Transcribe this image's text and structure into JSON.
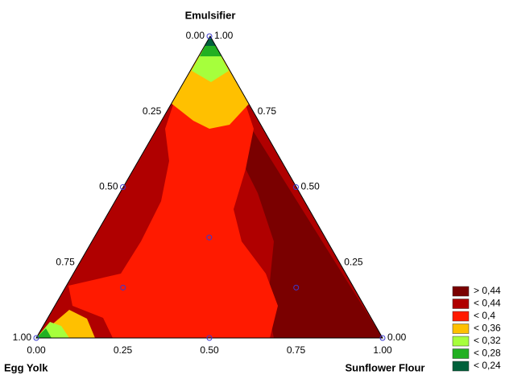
{
  "chart_data": {
    "type": "ternary",
    "axis_titles": {
      "top": "Emulsifier",
      "left": "Egg Yolk",
      "right": "Sunflower Flour"
    },
    "left_ticks": [
      {
        "value": 0,
        "label": "0.00"
      },
      {
        "value": 0.25,
        "label": "0.25"
      },
      {
        "value": 0.5,
        "label": "0.50"
      },
      {
        "value": 0.75,
        "label": "0.75"
      },
      {
        "value": 1,
        "label": "1.00"
      }
    ],
    "right_ticks": [
      {
        "value": 1,
        "label": "1.00"
      },
      {
        "value": 0.75,
        "label": "0.75"
      },
      {
        "value": 0.5,
        "label": "0.50"
      },
      {
        "value": 0.25,
        "label": "0.25"
      },
      {
        "value": 0,
        "label": "0.00"
      }
    ],
    "bottom_ticks": [
      {
        "value": 0,
        "label": "0.00"
      },
      {
        "value": 0.25,
        "label": "0.25"
      },
      {
        "value": 0.5,
        "label": "0.50"
      },
      {
        "value": 0.75,
        "label": "0.75"
      },
      {
        "value": 1,
        "label": "1.00"
      }
    ],
    "design_points": {
      "egg_yolk": [
        0,
        0.5,
        0,
        0.333,
        0.667,
        0.167,
        1,
        0.5,
        0
      ],
      "emulsifier": [
        1,
        0.5,
        0.5,
        0.333,
        0.167,
        0.167,
        0,
        0,
        0
      ],
      "sunflower_flour": [
        0,
        0,
        0.5,
        0.333,
        0.167,
        0.667,
        0,
        0.5,
        1
      ],
      "color": "#3a3ad0"
    },
    "legend": [
      {
        "label": "> 0,44",
        "color": "#7a0000"
      },
      {
        "label": "< 0,44",
        "color": "#b00000"
      },
      {
        "label": "< 0,4",
        "color": "#ff1a00"
      },
      {
        "label": "< 0,36",
        "color": "#ffc000"
      },
      {
        "label": "< 0,32",
        "color": "#a6ff3c"
      },
      {
        "label": "< 0,28",
        "color": "#22b022"
      },
      {
        "label": "< 0,24",
        "color": "#00603a"
      }
    ]
  }
}
